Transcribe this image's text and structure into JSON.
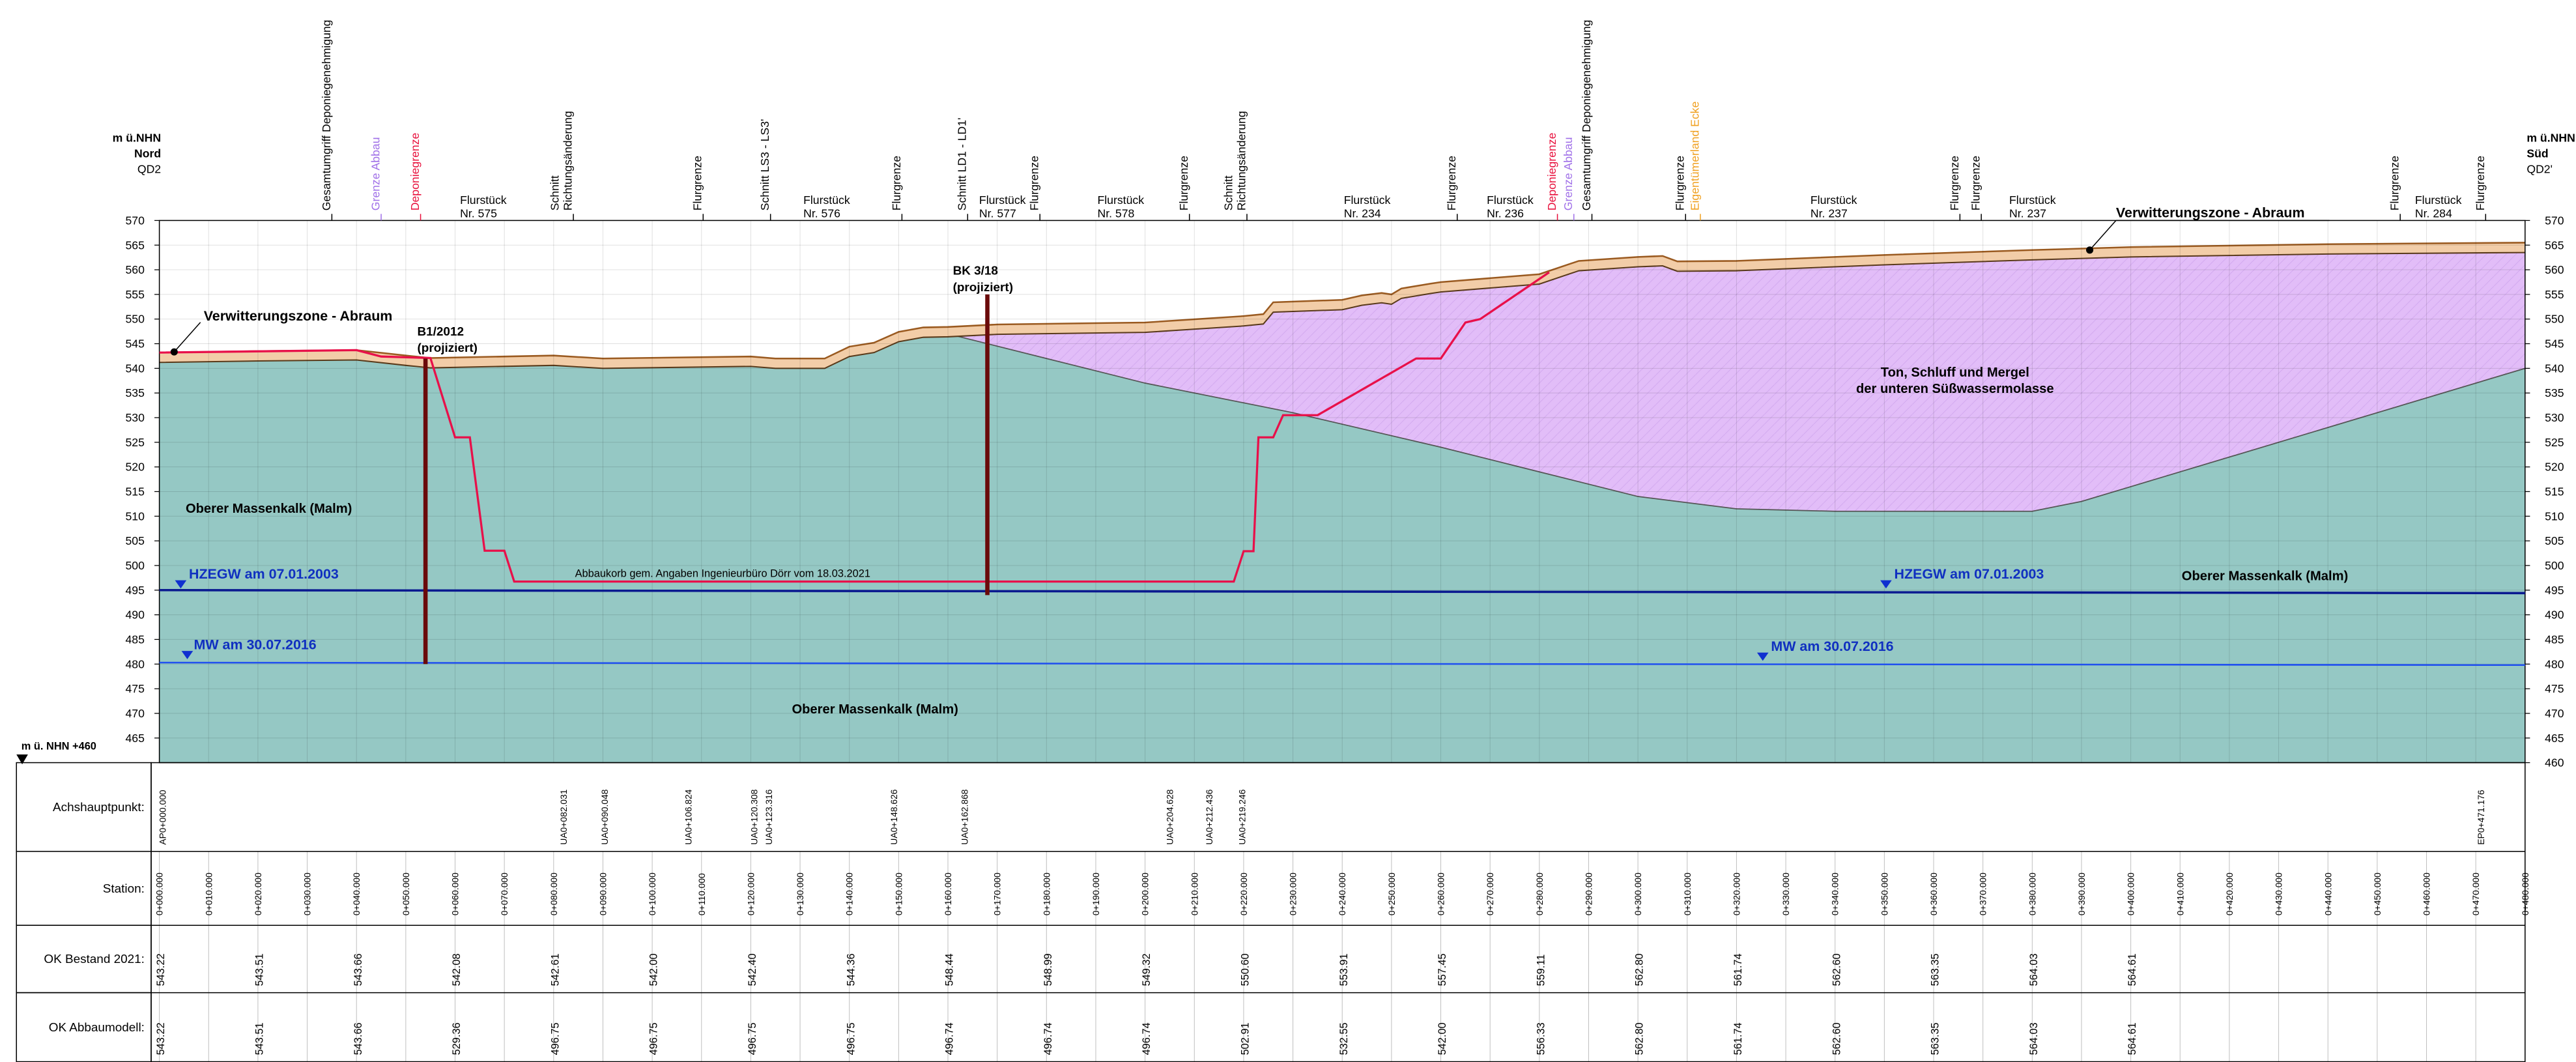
{
  "header": {
    "left": [
      "m ü.NHN",
      "Nord",
      "QD2"
    ],
    "right": [
      "m ü.NHN",
      "Süd",
      "QD2'"
    ]
  },
  "top_labels": [
    {
      "lines": [
        "Gesamtumgriff Deponiegenehmigung"
      ]
    },
    {
      "lines": [
        "Grenze Abbau"
      ],
      "color": "#a070e8"
    },
    {
      "lines": [
        "Deponiegrenze"
      ],
      "color": "#e8103c"
    },
    {
      "lines": [
        "Flurstück",
        "Nr. 575"
      ]
    },
    {
      "lines": [
        "Schnitt",
        "Richtungsänderung"
      ]
    },
    {
      "lines": [
        "Flurgrenze"
      ]
    },
    {
      "lines": [
        "Schnitt LS3 - LS3'"
      ]
    },
    {
      "lines": [
        "Flurstück",
        "Nr. 576"
      ]
    },
    {
      "lines": [
        "Flurgrenze"
      ]
    },
    {
      "lines": [
        "Schnitt LD1 - LD1'"
      ]
    },
    {
      "lines": [
        "Flurstück",
        "Nr. 577"
      ]
    },
    {
      "lines": [
        "Flurgrenze"
      ]
    },
    {
      "lines": [
        "Flurstück",
        "Nr. 578"
      ]
    },
    {
      "lines": [
        "Flurgrenze"
      ]
    },
    {
      "lines": [
        "Schnitt",
        "Richtungsänderung"
      ]
    },
    {
      "lines": [
        "Flurstück",
        "Nr. 234"
      ]
    },
    {
      "lines": [
        "Flurgrenze"
      ]
    },
    {
      "lines": [
        "Flurstück",
        "Nr. 236"
      ]
    },
    {
      "lines": [
        "Deponiegrenze"
      ],
      "color": "#e8103c"
    },
    {
      "lines": [
        "Grenze Abbau"
      ],
      "color": "#a070e8"
    },
    {
      "lines": [
        "Gesamtumgriff Deponiegenehmigung"
      ]
    },
    {
      "lines": [
        "Flurgrenze"
      ]
    },
    {
      "lines": [
        "Eigentümerland Ecke"
      ],
      "color": "#f0a020"
    },
    {
      "lines": [
        "Flurstück",
        "Nr. 237"
      ]
    },
    {
      "lines": [
        "Flurgrenze"
      ]
    },
    {
      "lines": [
        "Flurgrenze"
      ]
    },
    {
      "lines": [
        "Flurstück",
        "Nr. 237"
      ]
    },
    {
      "lines": [
        "Flurgrenze"
      ]
    },
    {
      "lines": [
        "Flurstück",
        "Nr. 284"
      ]
    },
    {
      "lines": [
        "Flurgrenze"
      ]
    }
  ],
  "elevation_axis": {
    "left_ticks": [
      570,
      565,
      560,
      555,
      550,
      545,
      540,
      535,
      530,
      525,
      520,
      515,
      510,
      505,
      500,
      495,
      490,
      485,
      480,
      475,
      470,
      465
    ],
    "right_ticks": [
      570,
      565,
      560,
      555,
      550,
      545,
      540,
      535,
      530,
      525,
      520,
      515,
      510,
      505,
      500,
      495,
      490,
      485,
      480,
      475,
      470,
      465,
      460
    ],
    "datum_label": "m ü. NHN +460"
  },
  "plot_labels": [
    {
      "lines": [
        "Verwitterungszone - Abraum"
      ]
    },
    {
      "lines": [
        "B1/2012",
        "(projiziert)"
      ]
    },
    {
      "lines": [
        "BK 3/18",
        "(projiziert)"
      ]
    },
    {
      "lines": [
        "Verwitterungszone - Abraum"
      ]
    },
    {
      "lines": [
        "Ton, Schluff und Mergel",
        "der unteren Süßwassermolasse"
      ]
    },
    {
      "lines": [
        "Oberer Massenkalk (Malm)"
      ]
    },
    {
      "lines": [
        "Oberer Massenkalk (Malm)"
      ]
    },
    {
      "lines": [
        "Oberer Massenkalk (Malm)"
      ]
    },
    {
      "lines": [
        "Abbaukorb gem. Angaben Ingenieurbüro Dörr vom 18.03.2021"
      ]
    },
    {
      "lines": [
        "HZEGW am 07.01.2003"
      ]
    },
    {
      "lines": [
        "HZEGW am 07.01.2003"
      ]
    },
    {
      "lines": [
        "MW am 30.07.2016"
      ]
    },
    {
      "lines": [
        "MW am 30.07.2016"
      ]
    }
  ],
  "table": {
    "row_labels": [
      "Achshauptpunkt:",
      "Station:",
      "OK Bestand 2021:",
      "OK Abbaumodell:"
    ],
    "achshauptpunkt": [
      "AP0+000.000",
      "UA0+082.031",
      "UA0+090.048",
      "UA0+106.824",
      "UA0+120.308",
      "UA0+123.316",
      "UA0+148.626",
      "UA0+162.868",
      "UA0+204.628",
      "UA0+212.436",
      "UA0+219.246",
      "EP0+471.176"
    ],
    "station": [
      "0+000.000",
      "0+010.000",
      "0+020.000",
      "0+030.000",
      "0+040.000",
      "0+050.000",
      "0+060.000",
      "0+070.000",
      "0+080.000",
      "0+090.000",
      "0+100.000",
      "0+110.000",
      "0+120.000",
      "0+130.000",
      "0+140.000",
      "0+150.000",
      "0+160.000",
      "0+170.000",
      "0+180.000",
      "0+190.000",
      "0+200.000",
      "0+210.000",
      "0+220.000",
      "0+230.000",
      "0+240.000",
      "0+250.000",
      "0+260.000",
      "0+270.000",
      "0+280.000",
      "0+290.000",
      "0+300.000",
      "0+310.000",
      "0+320.000",
      "0+330.000",
      "0+340.000",
      "0+350.000",
      "0+360.000",
      "0+370.000",
      "0+380.000",
      "0+390.000",
      "0+400.000",
      "0+410.000",
      "0+420.000",
      "0+430.000",
      "0+440.000",
      "0+450.000",
      "0+460.000",
      "0+470.000",
      "0+480.000"
    ],
    "ok_bestand": [
      "543.22",
      "543.51",
      "543.66",
      "542.08",
      "542.61",
      "542.00",
      "542.40",
      "544.36",
      "548.44",
      "548.99",
      "549.32",
      "550.60",
      "553.91",
      "557.45",
      "559.11",
      "562.80",
      "561.74",
      "562.60",
      "563.35",
      "564.03",
      "564.61"
    ],
    "ok_abbaumodell": [
      "543.22",
      "543.51",
      "543.66",
      "529.36",
      "496.75",
      "496.75",
      "496.75",
      "496.75",
      "496.74",
      "496.74",
      "496.74",
      "502.91",
      "532.55",
      "542.00",
      "556.33",
      "562.80",
      "561.74",
      "562.60",
      "563.35",
      "564.03",
      "564.61"
    ]
  }
}
